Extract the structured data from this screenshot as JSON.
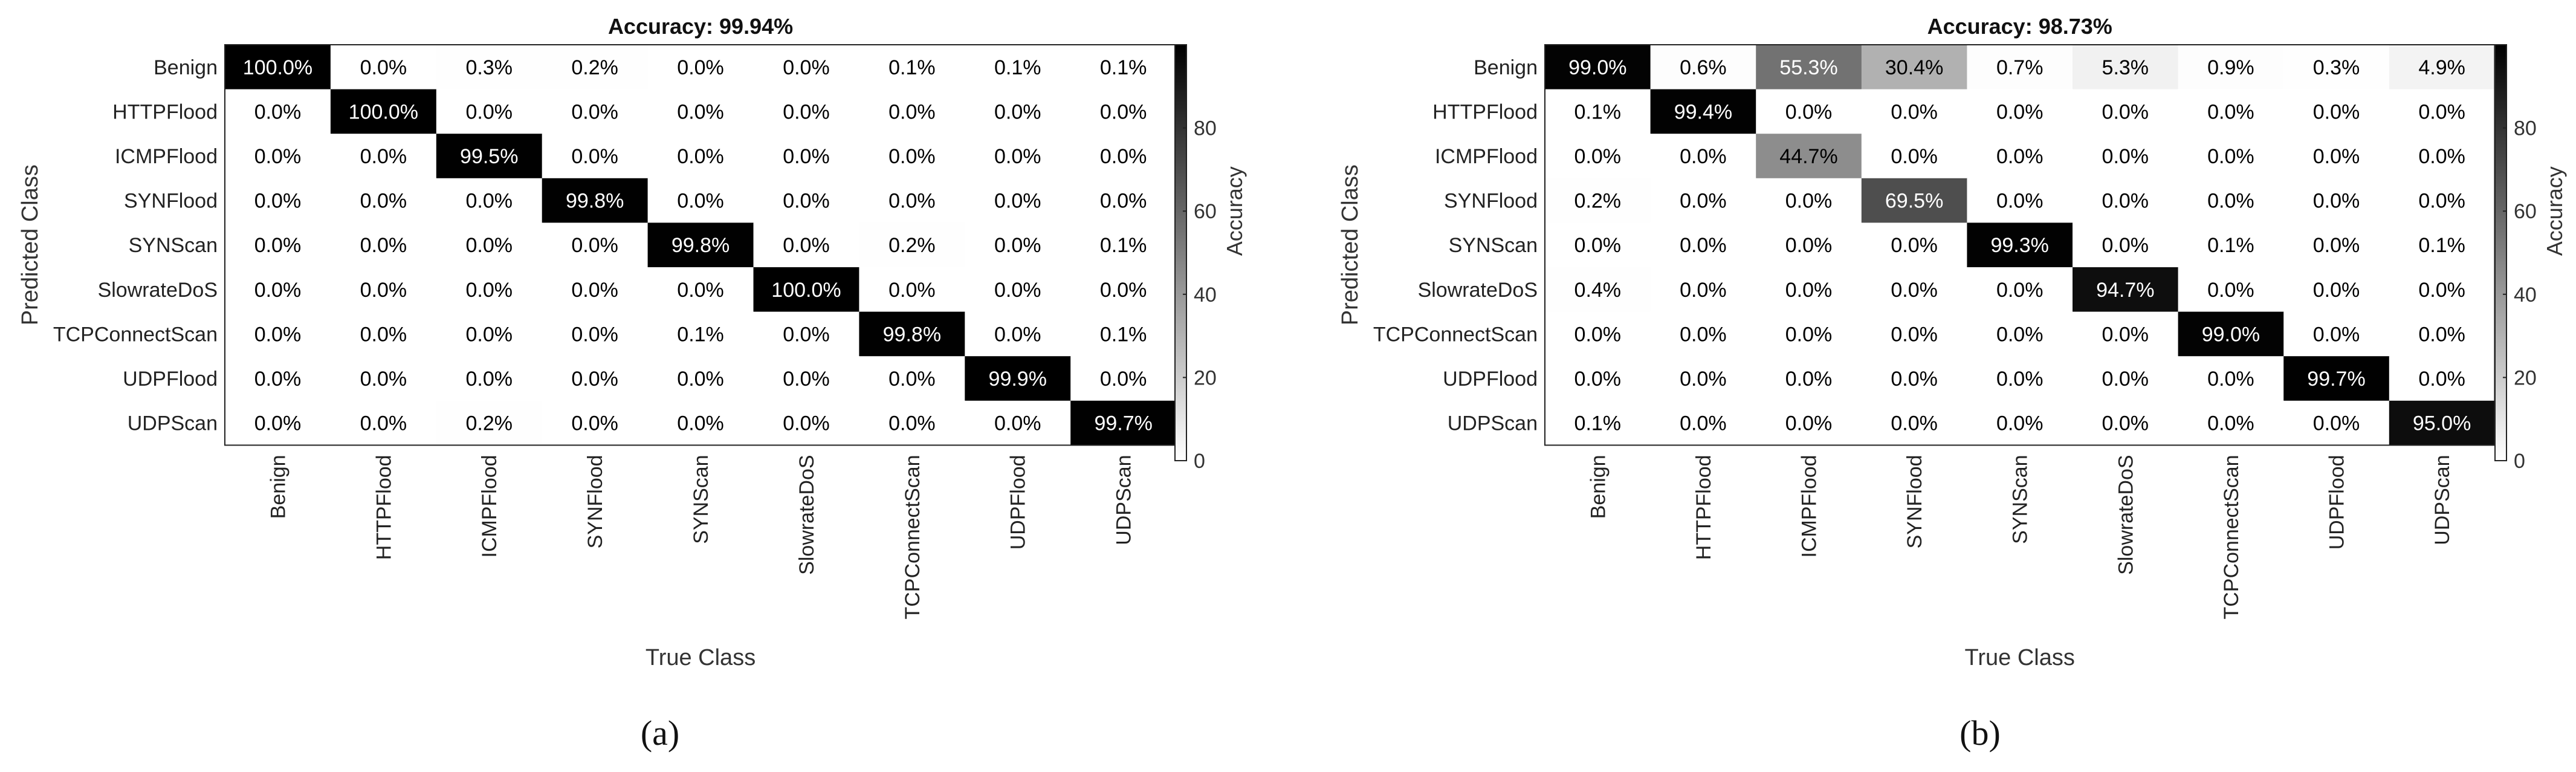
{
  "chart_data": [
    {
      "type": "heatmap",
      "panel_label": "(a)",
      "title": "Accuracy: 99.94%",
      "xlabel": "True Class",
      "ylabel": "Predicted Class",
      "colorbar_label": "Accuracy",
      "colorbar_ticks": [
        0,
        20,
        40,
        60,
        80
      ],
      "colorbar_range": [
        0,
        100
      ],
      "colormap": [
        "#ffffff",
        "#000000"
      ],
      "x_categories": [
        "Benign",
        "HTTPFlood",
        "ICMPFlood",
        "SYNFlood",
        "SYNScan",
        "SlowrateDoS",
        "TCPConnectScan",
        "UDPFlood",
        "UDPScan"
      ],
      "y_categories": [
        "Benign",
        "HTTPFlood",
        "ICMPFlood",
        "SYNFlood",
        "SYNScan",
        "SlowrateDoS",
        "TCPConnectScan",
        "UDPFlood",
        "UDPScan"
      ],
      "values": [
        [
          100.0,
          0.0,
          0.3,
          0.2,
          0.0,
          0.0,
          0.1,
          0.1,
          0.1
        ],
        [
          0.0,
          100.0,
          0.0,
          0.0,
          0.0,
          0.0,
          0.0,
          0.0,
          0.0
        ],
        [
          0.0,
          0.0,
          99.5,
          0.0,
          0.0,
          0.0,
          0.0,
          0.0,
          0.0
        ],
        [
          0.0,
          0.0,
          0.0,
          99.8,
          0.0,
          0.0,
          0.0,
          0.0,
          0.0
        ],
        [
          0.0,
          0.0,
          0.0,
          0.0,
          99.8,
          0.0,
          0.2,
          0.0,
          0.1
        ],
        [
          0.0,
          0.0,
          0.0,
          0.0,
          0.0,
          100.0,
          0.0,
          0.0,
          0.0
        ],
        [
          0.0,
          0.0,
          0.0,
          0.0,
          0.1,
          0.0,
          99.8,
          0.0,
          0.1
        ],
        [
          0.0,
          0.0,
          0.0,
          0.0,
          0.0,
          0.0,
          0.0,
          99.9,
          0.0
        ],
        [
          0.0,
          0.0,
          0.2,
          0.0,
          0.0,
          0.0,
          0.0,
          0.0,
          99.7
        ]
      ]
    },
    {
      "type": "heatmap",
      "panel_label": "(b)",
      "title": "Accuracy: 98.73%",
      "xlabel": "True Class",
      "ylabel": "Predicted Class",
      "colorbar_label": "Accuracy",
      "colorbar_ticks": [
        0,
        20,
        40,
        60,
        80
      ],
      "colorbar_range": [
        0,
        100
      ],
      "colormap": [
        "#ffffff",
        "#000000"
      ],
      "x_categories": [
        "Benign",
        "HTTPFlood",
        "ICMPFlood",
        "SYNFlood",
        "SYNScan",
        "SlowrateDoS",
        "TCPConnectScan",
        "UDPFlood",
        "UDPScan"
      ],
      "y_categories": [
        "Benign",
        "HTTPFlood",
        "ICMPFlood",
        "SYNFlood",
        "SYNScan",
        "SlowrateDoS",
        "TCPConnectScan",
        "UDPFlood",
        "UDPScan"
      ],
      "values": [
        [
          99.0,
          0.6,
          55.3,
          30.4,
          0.7,
          5.3,
          0.9,
          0.3,
          4.9
        ],
        [
          0.1,
          99.4,
          0.0,
          0.0,
          0.0,
          0.0,
          0.0,
          0.0,
          0.0
        ],
        [
          0.0,
          0.0,
          44.7,
          0.0,
          0.0,
          0.0,
          0.0,
          0.0,
          0.0
        ],
        [
          0.2,
          0.0,
          0.0,
          69.5,
          0.0,
          0.0,
          0.0,
          0.0,
          0.0
        ],
        [
          0.0,
          0.0,
          0.0,
          0.0,
          99.3,
          0.0,
          0.1,
          0.0,
          0.1
        ],
        [
          0.4,
          0.0,
          0.0,
          0.0,
          0.0,
          94.7,
          0.0,
          0.0,
          0.0
        ],
        [
          0.0,
          0.0,
          0.0,
          0.0,
          0.0,
          0.0,
          99.0,
          0.0,
          0.0
        ],
        [
          0.0,
          0.0,
          0.0,
          0.0,
          0.0,
          0.0,
          0.0,
          99.7,
          0.0
        ],
        [
          0.1,
          0.0,
          0.0,
          0.0,
          0.0,
          0.0,
          0.0,
          0.0,
          95.0
        ]
      ]
    }
  ]
}
